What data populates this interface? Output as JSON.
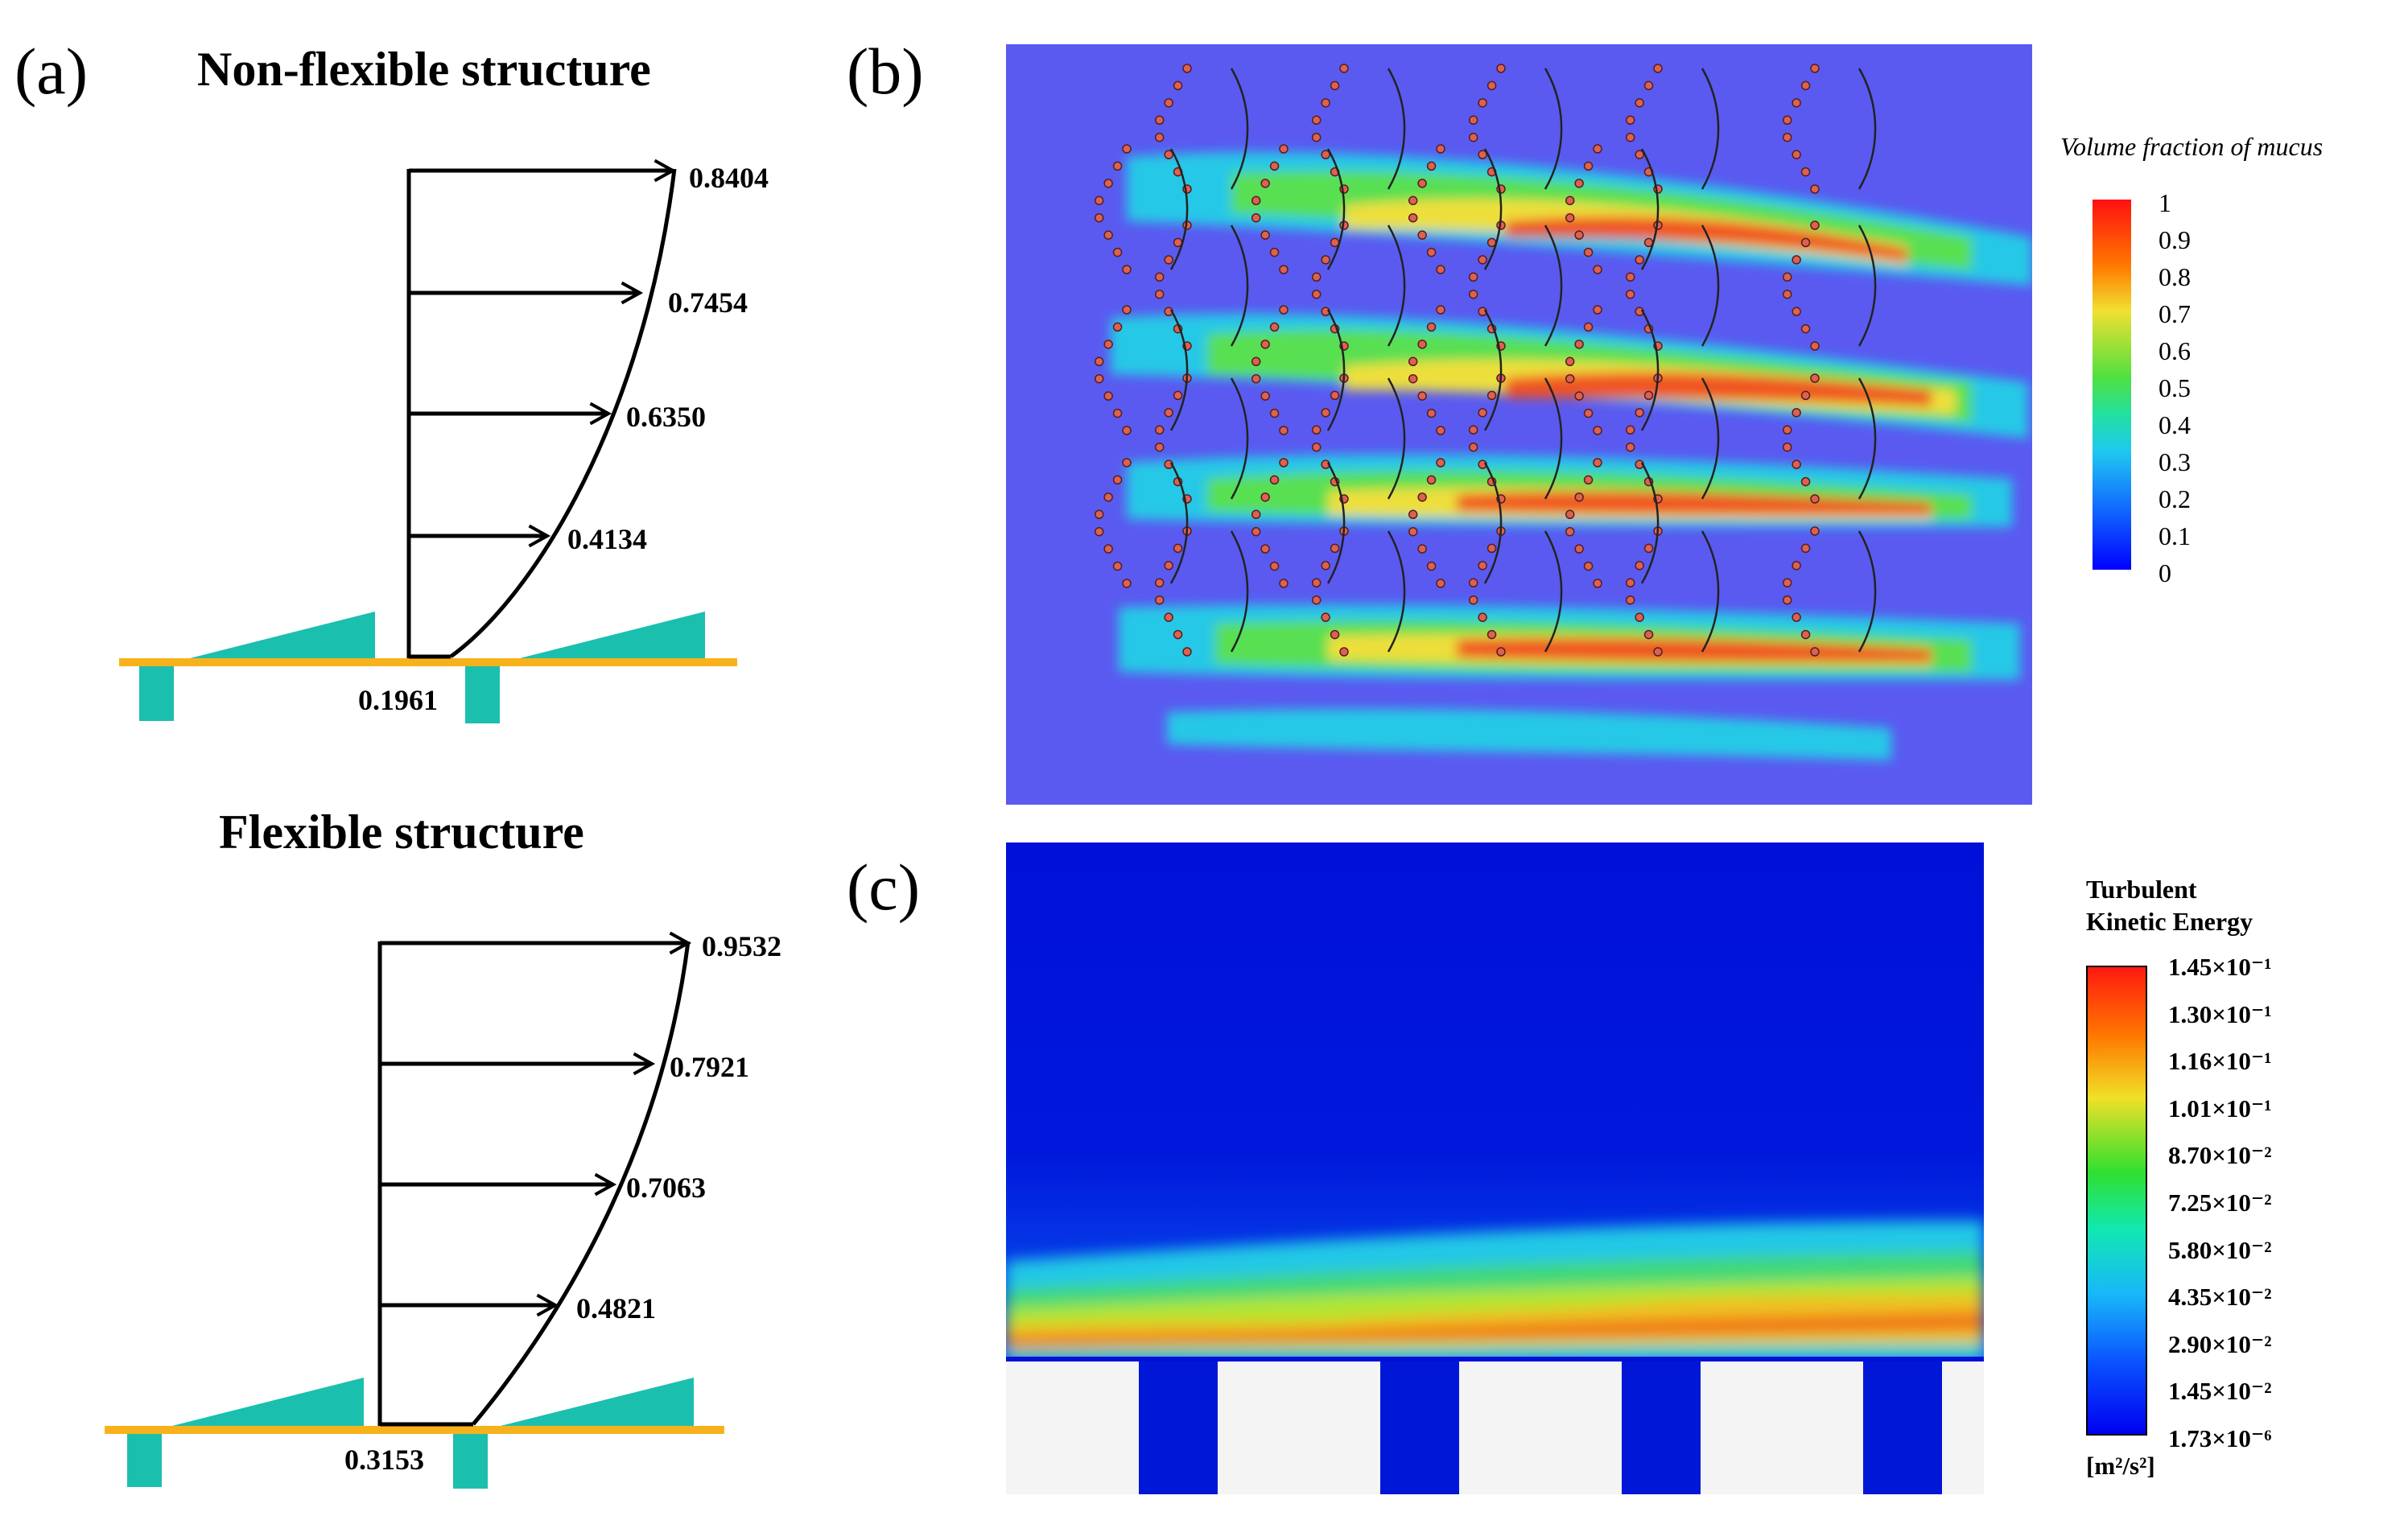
{
  "panel_a": {
    "label": "(a)",
    "top": {
      "title": "Non-flexible structure",
      "velocities": [
        "0.8404",
        "0.7454",
        "0.6350",
        "0.4134"
      ],
      "base_value": "0.1961"
    },
    "bottom": {
      "title": "Flexible structure",
      "velocities": [
        "0.9532",
        "0.7921",
        "0.7063",
        "0.4821"
      ],
      "base_value": "0.3153"
    }
  },
  "panel_b": {
    "label": "(b)",
    "colorbar_title": "Volume fraction of mucus",
    "ticks": [
      "1",
      "0.9",
      "0.8",
      "0.7",
      "0.6",
      "0.5",
      "0.4",
      "0.3",
      "0.2",
      "0.1",
      "0"
    ]
  },
  "panel_c": {
    "label": "(c)",
    "colorbar_title_line1": "Turbulent",
    "colorbar_title_line2": "Kinetic Energy",
    "ticks": [
      "1.45×10⁻¹",
      "1.30×10⁻¹",
      "1.16×10⁻¹",
      "1.01×10⁻¹",
      "8.70×10⁻²",
      "7.25×10⁻²",
      "5.80×10⁻²",
      "4.35×10⁻²",
      "2.90×10⁻²",
      "1.45×10⁻²",
      "1.73×10⁻⁶"
    ],
    "unit": "[m²/s²]"
  },
  "colors": {
    "plate": "#f7b21b",
    "teal": "#1bbfae",
    "mucus_bg": "#5a5af0",
    "tke_bg": "#0015d8"
  }
}
